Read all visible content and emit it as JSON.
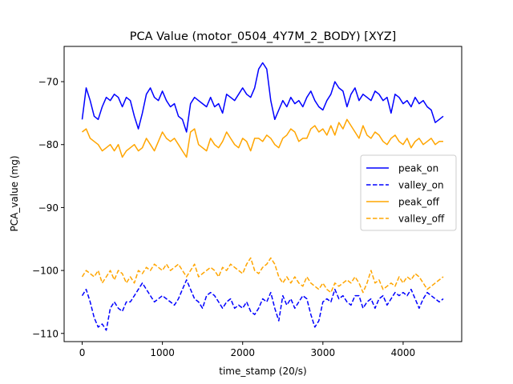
{
  "chart_data": {
    "type": "line",
    "title": "PCA Value (motor_0504_4Y7M_2_BODY) [XYZ]",
    "xlabel": "time_stamp (20/s)",
    "ylabel": "PCA_value (mg)",
    "xlim": [
      -225,
      4730
    ],
    "ylim": [
      -111.3,
      -64.4
    ],
    "xticks": [
      0,
      1000,
      2000,
      3000,
      4000
    ],
    "yticks": [
      -110,
      -100,
      -90,
      -80,
      -70
    ],
    "xtick_labels": [
      "0",
      "1000",
      "2000",
      "3000",
      "4000"
    ],
    "ytick_labels": [
      "−110",
      "−100",
      "−90",
      "−80",
      "−70"
    ],
    "grid": false,
    "legend_position": "center-right",
    "series": [
      {
        "name": "peak_on",
        "color": "#0000ff",
        "dash": "solid",
        "x": [
          0,
          50,
          100,
          150,
          200,
          250,
          300,
          350,
          400,
          450,
          500,
          550,
          600,
          650,
          700,
          750,
          800,
          850,
          900,
          950,
          1000,
          1050,
          1100,
          1150,
          1200,
          1250,
          1300,
          1350,
          1400,
          1450,
          1500,
          1550,
          1600,
          1650,
          1700,
          1750,
          1800,
          1850,
          1900,
          1950,
          2000,
          2050,
          2100,
          2150,
          2200,
          2250,
          2300,
          2350,
          2400,
          2450,
          2500,
          2550,
          2600,
          2650,
          2700,
          2750,
          2800,
          2850,
          2900,
          2950,
          3000,
          3050,
          3100,
          3150,
          3200,
          3250,
          3300,
          3350,
          3400,
          3450,
          3500,
          3550,
          3600,
          3650,
          3700,
          3750,
          3800,
          3850,
          3900,
          3950,
          4000,
          4050,
          4100,
          4150,
          4200,
          4250,
          4300,
          4350,
          4400,
          4450,
          4500
        ],
        "y": [
          -76,
          -71,
          -73,
          -75.5,
          -76,
          -74,
          -72.5,
          -73,
          -72,
          -72.5,
          -74,
          -72.5,
          -73,
          -75.5,
          -77.5,
          -75,
          -72,
          -71,
          -72.5,
          -73,
          -71.5,
          -73,
          -74,
          -73.5,
          -75.5,
          -76,
          -78,
          -73.5,
          -72.5,
          -73,
          -73.5,
          -74,
          -72.5,
          -74,
          -73.5,
          -75,
          -72,
          -72.5,
          -73,
          -72,
          -71,
          -72,
          -72.5,
          -71,
          -68,
          -67,
          -68,
          -73,
          -76,
          -74.5,
          -73,
          -74,
          -72.5,
          -73.5,
          -73,
          -74,
          -72.5,
          -71.5,
          -73,
          -74,
          -74.5,
          -73,
          -72,
          -70,
          -71,
          -71.5,
          -74,
          -72,
          -71,
          -73,
          -72,
          -72.5,
          -73,
          -71.5,
          -72,
          -73,
          -72.5,
          -75,
          -72,
          -72.5,
          -73.5,
          -73,
          -74,
          -72.5,
          -73.5,
          -73,
          -74,
          -74.5,
          -76.5,
          -76,
          -75.5
        ]
      },
      {
        "name": "valley_on",
        "color": "#0000ff",
        "dash": "dashed",
        "x": [
          0,
          50,
          100,
          150,
          200,
          250,
          300,
          350,
          400,
          450,
          500,
          550,
          600,
          650,
          700,
          750,
          800,
          850,
          900,
          950,
          1000,
          1050,
          1100,
          1150,
          1200,
          1250,
          1300,
          1350,
          1400,
          1450,
          1500,
          1550,
          1600,
          1650,
          1700,
          1750,
          1800,
          1850,
          1900,
          1950,
          2000,
          2050,
          2100,
          2150,
          2200,
          2250,
          2300,
          2350,
          2400,
          2450,
          2500,
          2550,
          2600,
          2650,
          2700,
          2750,
          2800,
          2850,
          2900,
          2950,
          3000,
          3050,
          3100,
          3150,
          3200,
          3250,
          3300,
          3350,
          3400,
          3450,
          3500,
          3550,
          3600,
          3650,
          3700,
          3750,
          3800,
          3850,
          3900,
          3950,
          4000,
          4050,
          4100,
          4150,
          4200,
          4250,
          4300,
          4350,
          4400,
          4450,
          4500
        ],
        "y": [
          -104,
          -103,
          -105,
          -107.5,
          -109,
          -108.5,
          -109.5,
          -106,
          -105,
          -106,
          -106.5,
          -105,
          -105,
          -104,
          -103,
          -102,
          -103,
          -104,
          -105,
          -104.5,
          -104,
          -104.5,
          -105,
          -105.5,
          -104.5,
          -103,
          -101.5,
          -103,
          -104.5,
          -105,
          -106,
          -104,
          -103.5,
          -104,
          -105,
          -106,
          -105,
          -104.5,
          -106,
          -105.5,
          -106,
          -105,
          -106.5,
          -107,
          -106,
          -104.5,
          -105,
          -103.5,
          -106,
          -108,
          -104,
          -105.5,
          -104.5,
          -106,
          -105,
          -104,
          -104.5,
          -107,
          -109,
          -108,
          -105,
          -104.5,
          -105,
          -103,
          -104.5,
          -104,
          -105,
          -105.5,
          -104,
          -104,
          -106,
          -105,
          -104.5,
          -106,
          -104.5,
          -104,
          -105.5,
          -104.5,
          -103.5,
          -104,
          -103.5,
          -104,
          -103,
          -104.5,
          -106,
          -104.5,
          -103.5,
          -104,
          -104.5,
          -105,
          -104.5
        ]
      },
      {
        "name": "peak_off",
        "color": "#ffa500",
        "dash": "solid",
        "x": [
          0,
          50,
          100,
          150,
          200,
          250,
          300,
          350,
          400,
          450,
          500,
          550,
          600,
          650,
          700,
          750,
          800,
          850,
          900,
          950,
          1000,
          1050,
          1100,
          1150,
          1200,
          1250,
          1300,
          1350,
          1400,
          1450,
          1500,
          1550,
          1600,
          1650,
          1700,
          1750,
          1800,
          1850,
          1900,
          1950,
          2000,
          2050,
          2100,
          2150,
          2200,
          2250,
          2300,
          2350,
          2400,
          2450,
          2500,
          2550,
          2600,
          2650,
          2700,
          2750,
          2800,
          2850,
          2900,
          2950,
          3000,
          3050,
          3100,
          3150,
          3200,
          3250,
          3300,
          3350,
          3400,
          3450,
          3500,
          3550,
          3600,
          3650,
          3700,
          3750,
          3800,
          3850,
          3900,
          3950,
          4000,
          4050,
          4100,
          4150,
          4200,
          4250,
          4300,
          4350,
          4400,
          4450,
          4500
        ],
        "y": [
          -78,
          -77.5,
          -79,
          -79.5,
          -80,
          -81,
          -80.5,
          -80,
          -81,
          -80,
          -82,
          -81,
          -80.5,
          -80,
          -81,
          -80.5,
          -79,
          -80,
          -81,
          -79.5,
          -78,
          -79,
          -79.5,
          -79,
          -80,
          -81,
          -82,
          -78,
          -77.5,
          -80,
          -80.5,
          -81,
          -79,
          -80,
          -80.5,
          -79.5,
          -78,
          -79,
          -80,
          -80.5,
          -79,
          -79.5,
          -81,
          -79,
          -79,
          -79.5,
          -78.5,
          -79,
          -80,
          -80.5,
          -79,
          -78.5,
          -77.5,
          -78,
          -79.5,
          -79,
          -79,
          -77.5,
          -77,
          -78,
          -77.5,
          -78.5,
          -77,
          -78.5,
          -76.5,
          -77.5,
          -76,
          -77,
          -78,
          -79,
          -77,
          -78.5,
          -79,
          -78,
          -78.5,
          -79.5,
          -80,
          -79,
          -78.5,
          -79.5,
          -80,
          -79,
          -80.5,
          -79.5,
          -79,
          -80,
          -79.5,
          -79,
          -80,
          -79.5,
          -79.5
        ]
      },
      {
        "name": "valley_off",
        "color": "#ffa500",
        "dash": "dashed",
        "x": [
          0,
          50,
          100,
          150,
          200,
          250,
          300,
          350,
          400,
          450,
          500,
          550,
          600,
          650,
          700,
          750,
          800,
          850,
          900,
          950,
          1000,
          1050,
          1100,
          1150,
          1200,
          1250,
          1300,
          1350,
          1400,
          1450,
          1500,
          1550,
          1600,
          1650,
          1700,
          1750,
          1800,
          1850,
          1900,
          1950,
          2000,
          2050,
          2100,
          2150,
          2200,
          2250,
          2300,
          2350,
          2400,
          2450,
          2500,
          2550,
          2600,
          2650,
          2700,
          2750,
          2800,
          2850,
          2900,
          2950,
          3000,
          3050,
          3100,
          3150,
          3200,
          3250,
          3300,
          3350,
          3400,
          3450,
          3500,
          3550,
          3600,
          3650,
          3700,
          3750,
          3800,
          3850,
          3900,
          3950,
          4000,
          4050,
          4100,
          4150,
          4200,
          4250,
          4300,
          4350,
          4400,
          4450,
          4500
        ],
        "y": [
          -101,
          -100,
          -100.5,
          -101,
          -100,
          -102,
          -101,
          -100,
          -101.5,
          -100,
          -100.5,
          -102,
          -101,
          -102,
          -100,
          -100.5,
          -99.5,
          -100,
          -99,
          -99.5,
          -100,
          -99,
          -100,
          -99.5,
          -99,
          -100,
          -101,
          -100,
          -99,
          -101,
          -100.5,
          -100,
          -99.5,
          -100,
          -101,
          -99.5,
          -100,
          -99,
          -99.5,
          -100,
          -100.5,
          -99,
          -98,
          -100,
          -100.5,
          -99.5,
          -99,
          -98,
          -99,
          -101,
          -102,
          -101,
          -102,
          -101,
          -102,
          -102.5,
          -101,
          -102,
          -102.5,
          -103,
          -102,
          -103,
          -103.5,
          -102,
          -102.5,
          -102,
          -101.5,
          -102,
          -101,
          -102,
          -103.5,
          -102,
          -100,
          -102,
          -101.5,
          -103,
          -102.5,
          -102,
          -102.5,
          -101,
          -102,
          -101,
          -101.5,
          -100.5,
          -101,
          -102,
          -103,
          -102.5,
          -102,
          -101.5,
          -101
        ]
      }
    ]
  }
}
